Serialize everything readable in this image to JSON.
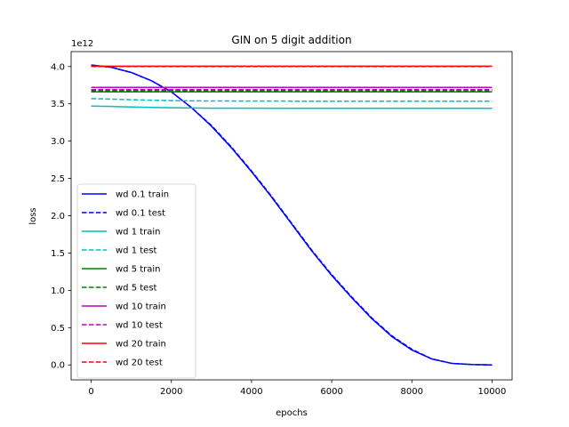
{
  "chart_data": {
    "type": "line",
    "title": "GIN on 5 digit addition",
    "xlabel": "epochs",
    "ylabel": "loss",
    "y_offset_label": "1e12",
    "xlim": [
      -500,
      10500
    ],
    "ylim": [
      -0.2,
      4.2
    ],
    "x_ticks": [
      0,
      2000,
      4000,
      6000,
      8000,
      10000
    ],
    "x_tick_labels": [
      "0",
      "2000",
      "4000",
      "6000",
      "8000",
      "10000"
    ],
    "y_ticks": [
      0.0,
      0.5,
      1.0,
      1.5,
      2.0,
      2.5,
      3.0,
      3.5,
      4.0
    ],
    "y_tick_labels": [
      "0.0",
      "0.5",
      "1.0",
      "1.5",
      "2.0",
      "2.5",
      "3.0",
      "3.5",
      "4.0"
    ],
    "grid": false,
    "legend_position": "lower-left",
    "series": [
      {
        "name": "wd 0.1 train",
        "color": "#0000ff",
        "style": "solid",
        "x": [
          0,
          500,
          1000,
          1500,
          2000,
          2500,
          3000,
          3500,
          4000,
          4500,
          5000,
          5500,
          6000,
          6500,
          7000,
          7500,
          8000,
          8500,
          9000,
          9500,
          10000
        ],
        "y": [
          4.02,
          3.99,
          3.92,
          3.81,
          3.66,
          3.45,
          3.2,
          2.91,
          2.59,
          2.25,
          1.89,
          1.53,
          1.2,
          0.9,
          0.62,
          0.38,
          0.2,
          0.08,
          0.02,
          0.005,
          0.0
        ]
      },
      {
        "name": "wd 0.1 test",
        "color": "#0000ff",
        "style": "dashed",
        "x": [
          0,
          500,
          1000,
          1500,
          2000,
          2500,
          3000,
          3500,
          4000,
          4500,
          5000,
          5500,
          6000,
          6500,
          7000,
          7500,
          8000,
          8500,
          9000,
          9500,
          10000
        ],
        "y": [
          4.02,
          3.99,
          3.92,
          3.81,
          3.66,
          3.45,
          3.21,
          2.92,
          2.6,
          2.26,
          1.9,
          1.54,
          1.21,
          0.91,
          0.63,
          0.39,
          0.21,
          0.08,
          0.02,
          0.005,
          0.0
        ]
      },
      {
        "name": "wd 1 train",
        "color": "#00bfbf",
        "style": "solid",
        "x": [
          0,
          500,
          1000,
          1500,
          2000,
          2500,
          3000,
          4000,
          5000,
          6000,
          7000,
          8000,
          9000,
          10000
        ],
        "y": [
          3.47,
          3.465,
          3.458,
          3.452,
          3.447,
          3.444,
          3.442,
          3.441,
          3.44,
          3.44,
          3.44,
          3.44,
          3.44,
          3.44
        ]
      },
      {
        "name": "wd 1 test",
        "color": "#00bfbf",
        "style": "dashed",
        "x": [
          0,
          500,
          1000,
          1500,
          2000,
          2500,
          3000,
          4000,
          5000,
          6000,
          7000,
          8000,
          9000,
          10000
        ],
        "y": [
          3.57,
          3.563,
          3.555,
          3.548,
          3.543,
          3.54,
          3.538,
          3.537,
          3.536,
          3.536,
          3.536,
          3.536,
          3.536,
          3.536
        ]
      },
      {
        "name": "wd 5 train",
        "color": "#008000",
        "style": "solid",
        "x": [
          0,
          10000
        ],
        "y": [
          3.66,
          3.66
        ]
      },
      {
        "name": "wd 5 test",
        "color": "#008000",
        "style": "dashed",
        "x": [
          0,
          10000
        ],
        "y": [
          3.675,
          3.675
        ]
      },
      {
        "name": "wd 10 train",
        "color": "#bf00bf",
        "style": "solid",
        "x": [
          0,
          10000
        ],
        "y": [
          3.72,
          3.72
        ]
      },
      {
        "name": "wd 10 test",
        "color": "#bf00bf",
        "style": "dashed",
        "x": [
          0,
          10000
        ],
        "y": [
          3.69,
          3.69
        ]
      },
      {
        "name": "wd 20 train",
        "color": "#ff0000",
        "style": "solid",
        "x": [
          0,
          10000
        ],
        "y": [
          4.005,
          4.005
        ]
      },
      {
        "name": "wd 20 test",
        "color": "#ff0000",
        "style": "dashed",
        "x": [
          0,
          10000
        ],
        "y": [
          4.0,
          4.0
        ]
      }
    ]
  }
}
